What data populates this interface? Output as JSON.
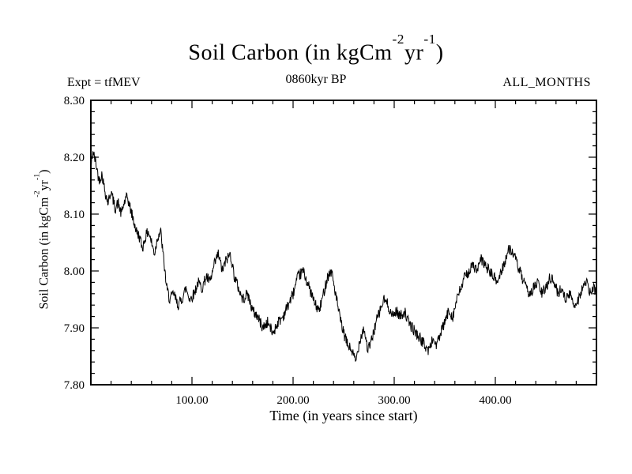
{
  "header": {
    "title": {
      "pre": "Soil Carbon (in kgCm",
      "sup1": "-2",
      "mid": "yr",
      "sup2": "-1",
      "post": ")"
    },
    "expt_label": "Expt = tfMEV",
    "date_label": "0860kyr BP",
    "months_label": "ALL_MONTHS"
  },
  "axes": {
    "xlabel": "Time (in years since start)",
    "ylabel": {
      "pre": "Soil Carbon (in kgCm",
      "sup1": "-2",
      "mid": "yr",
      "sup2": "-1",
      "post": ")"
    }
  },
  "chart_data": {
    "type": "line",
    "title": "Soil Carbon (in kgCm^-2yr^-1)",
    "subtitle": "0860kyr BP",
    "annotations": [
      "Expt = tfMEV",
      "ALL_MONTHS"
    ],
    "xlabel": "Time (in years since start)",
    "ylabel": "Soil Carbon (in kgCm^-2yr^-1)",
    "xlim": [
      0,
      500
    ],
    "ylim": [
      7.8,
      8.3
    ],
    "xticks": [
      100,
      200,
      300,
      400
    ],
    "xtick_labels": [
      "100.00",
      "200.00",
      "300.00",
      "400.00"
    ],
    "yticks": [
      7.8,
      7.9,
      8.0,
      8.1,
      8.2,
      8.3
    ],
    "ytick_labels": [
      "7.80",
      "7.90",
      "8.00",
      "8.10",
      "8.20",
      "8.30"
    ],
    "x_minor": 20,
    "y_minor": 0.02,
    "grid": false,
    "legend": "none",
    "line_color": "#000000",
    "noise_amplitude": 0.01,
    "noise_seed": 42,
    "sample_step": 0.4,
    "series": [
      {
        "name": "soil_carbon",
        "points": [
          [
            0,
            8.18
          ],
          [
            2,
            8.21
          ],
          [
            5,
            8.19
          ],
          [
            8,
            8.16
          ],
          [
            11,
            8.17
          ],
          [
            14,
            8.14
          ],
          [
            17,
            8.12
          ],
          [
            20,
            8.14
          ],
          [
            24,
            8.11
          ],
          [
            27,
            8.12
          ],
          [
            30,
            8.1
          ],
          [
            33,
            8.12
          ],
          [
            36,
            8.13
          ],
          [
            39,
            8.11
          ],
          [
            42,
            8.09
          ],
          [
            45,
            8.07
          ],
          [
            48,
            8.06
          ],
          [
            51,
            8.04
          ],
          [
            54,
            8.06
          ],
          [
            57,
            8.07
          ],
          [
            60,
            8.05
          ],
          [
            63,
            8.03
          ],
          [
            66,
            8.06
          ],
          [
            69,
            8.07
          ],
          [
            72,
            8.02
          ],
          [
            75,
            7.97
          ],
          [
            78,
            7.95
          ],
          [
            82,
            7.96
          ],
          [
            86,
            7.94
          ],
          [
            90,
            7.95
          ],
          [
            94,
            7.97
          ],
          [
            98,
            7.95
          ],
          [
            102,
            7.96
          ],
          [
            106,
            7.98
          ],
          [
            110,
            7.97
          ],
          [
            114,
            7.99
          ],
          [
            118,
            7.98
          ],
          [
            122,
            8.01
          ],
          [
            126,
            8.03
          ],
          [
            130,
            8.0
          ],
          [
            134,
            8.02
          ],
          [
            138,
            8.03
          ],
          [
            142,
            7.99
          ],
          [
            146,
            7.97
          ],
          [
            150,
            7.95
          ],
          [
            155,
            7.96
          ],
          [
            160,
            7.93
          ],
          [
            165,
            7.92
          ],
          [
            170,
            7.9
          ],
          [
            175,
            7.91
          ],
          [
            180,
            7.89
          ],
          [
            185,
            7.91
          ],
          [
            190,
            7.92
          ],
          [
            195,
            7.94
          ],
          [
            200,
            7.96
          ],
          [
            205,
            7.99
          ],
          [
            210,
            8.0
          ],
          [
            214,
            7.98
          ],
          [
            218,
            7.96
          ],
          [
            222,
            7.94
          ],
          [
            226,
            7.93
          ],
          [
            230,
            7.96
          ],
          [
            234,
            7.99
          ],
          [
            238,
            8.0
          ],
          [
            242,
            7.96
          ],
          [
            246,
            7.92
          ],
          [
            250,
            7.89
          ],
          [
            254,
            7.87
          ],
          [
            258,
            7.86
          ],
          [
            262,
            7.84
          ],
          [
            266,
            7.88
          ],
          [
            270,
            7.9
          ],
          [
            274,
            7.86
          ],
          [
            278,
            7.88
          ],
          [
            282,
            7.91
          ],
          [
            286,
            7.93
          ],
          [
            290,
            7.95
          ],
          [
            294,
            7.94
          ],
          [
            298,
            7.92
          ],
          [
            302,
            7.93
          ],
          [
            306,
            7.92
          ],
          [
            310,
            7.93
          ],
          [
            314,
            7.91
          ],
          [
            318,
            7.9
          ],
          [
            322,
            7.89
          ],
          [
            326,
            7.88
          ],
          [
            330,
            7.87
          ],
          [
            334,
            7.86
          ],
          [
            338,
            7.88
          ],
          [
            342,
            7.87
          ],
          [
            346,
            7.89
          ],
          [
            350,
            7.91
          ],
          [
            354,
            7.93
          ],
          [
            358,
            7.92
          ],
          [
            362,
            7.95
          ],
          [
            366,
            7.97
          ],
          [
            370,
            7.99
          ],
          [
            374,
            8.0
          ],
          [
            378,
            8.01
          ],
          [
            382,
            8.0
          ],
          [
            386,
            8.02
          ],
          [
            390,
            8.01
          ],
          [
            394,
            8.0
          ],
          [
            398,
            7.99
          ],
          [
            402,
            7.98
          ],
          [
            406,
            8.0
          ],
          [
            410,
            8.02
          ],
          [
            414,
            8.04
          ],
          [
            418,
            8.03
          ],
          [
            422,
            8.01
          ],
          [
            426,
            7.99
          ],
          [
            430,
            7.97
          ],
          [
            434,
            7.96
          ],
          [
            438,
            7.97
          ],
          [
            442,
            7.98
          ],
          [
            446,
            7.96
          ],
          [
            450,
            7.97
          ],
          [
            454,
            7.99
          ],
          [
            458,
            7.98
          ],
          [
            462,
            7.96
          ],
          [
            466,
            7.97
          ],
          [
            470,
            7.95
          ],
          [
            474,
            7.96
          ],
          [
            478,
            7.94
          ],
          [
            482,
            7.95
          ],
          [
            486,
            7.97
          ],
          [
            490,
            7.98
          ],
          [
            494,
            7.96
          ],
          [
            498,
            7.97
          ],
          [
            500,
            7.96
          ]
        ]
      }
    ]
  }
}
